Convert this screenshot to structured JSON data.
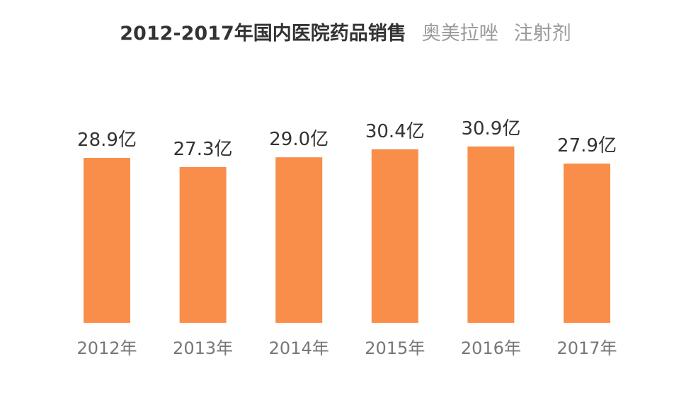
{
  "title": {
    "main": "2012-2017年国内医院药品销售",
    "drug": "奥美拉唑",
    "form": "注射剂"
  },
  "colors": {
    "bar": "#F98E4A",
    "label": "#333333",
    "tick": "#777777"
  },
  "chart_data": {
    "type": "bar",
    "title": "2012-2017年国内医院药品销售 奥美拉唑 注射剂",
    "categories": [
      "2012年",
      "2013年",
      "2014年",
      "2015年",
      "2016年",
      "2017年"
    ],
    "values": [
      28.9,
      27.3,
      29.0,
      30.4,
      30.9,
      27.9
    ],
    "data_labels": [
      "28.9亿",
      "27.3亿",
      "29.0亿",
      "30.4亿",
      "30.9亿",
      "27.9亿"
    ],
    "unit": "亿",
    "xlabel": "",
    "ylabel": "",
    "grid": false,
    "legend": "none"
  }
}
